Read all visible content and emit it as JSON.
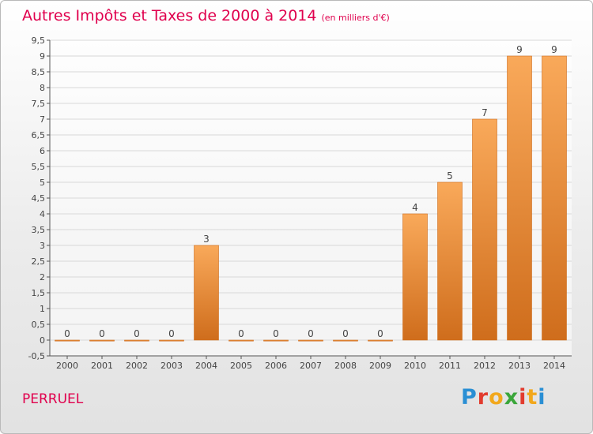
{
  "title": "Autres Impôts et Taxes de 2000 à 2014",
  "unit": "(en milliers d'€)",
  "commune": "PERRUEL",
  "logo": {
    "letters": [
      "P",
      "r",
      "o",
      "x",
      "i",
      "t",
      "i"
    ],
    "colors": [
      "#2a8fd4",
      "#e23b2e",
      "#f2a81d",
      "#3aa63a",
      "#e23b2e",
      "#f2a81d",
      "#2a8fd4"
    ]
  },
  "chart_data": {
    "type": "bar",
    "categories": [
      "2000",
      "2001",
      "2002",
      "2003",
      "2004",
      "2005",
      "2006",
      "2007",
      "2008",
      "2009",
      "2010",
      "2011",
      "2012",
      "2013",
      "2014"
    ],
    "values": [
      0,
      0,
      0,
      0,
      3,
      0,
      0,
      0,
      0,
      0,
      4,
      5,
      7,
      9,
      9
    ],
    "data_labels": [
      "0",
      "0",
      "0",
      "0",
      "3",
      "0",
      "0",
      "0",
      "0",
      "0",
      "4",
      "5",
      "7",
      "9",
      "9"
    ],
    "yticks": [
      "-0,5",
      "0",
      "0,5",
      "1",
      "1,5",
      "2",
      "2,5",
      "3",
      "3,5",
      "4",
      "4,5",
      "5",
      "5,5",
      "6",
      "6,5",
      "7",
      "7,5",
      "8",
      "8,5",
      "9",
      "9,5"
    ],
    "ylim": [
      -0.5,
      9.5
    ],
    "bar_color": "#f0923a",
    "bar_color_light": "#f9a95a",
    "bar_color_dark": "#cf6d1c",
    "grid": true
  }
}
